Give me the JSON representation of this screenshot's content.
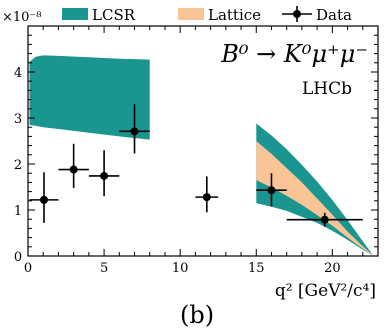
{
  "chart_data": {
    "type": "scatter",
    "decay_title": "B⁰ → K⁰μ⁺μ⁻",
    "experiment": "LHCb",
    "panel_label": "(b)",
    "xlabel": "q² [GeV²/c⁴]",
    "ylabel": "",
    "y_multiplier": "×10⁻⁸",
    "xlim": [
      0,
      23
    ],
    "ylim": [
      0,
      5
    ],
    "x_ticks": [
      0,
      5,
      10,
      15,
      20
    ],
    "y_ticks": [
      0,
      1,
      2,
      3,
      4
    ],
    "legend_position": "top",
    "legend": [
      {
        "label": "LCSR",
        "kind": "band",
        "color": "#1a9590"
      },
      {
        "label": "Lattice",
        "kind": "band",
        "color": "#f9c597"
      },
      {
        "label": "Data",
        "kind": "errorbar",
        "color": "#000000"
      }
    ],
    "series": [
      {
        "name": "Data",
        "points": [
          {
            "x": 1.05,
            "xlo": 0.1,
            "xhi": 2.0,
            "y": 1.22,
            "ylo": 0.72,
            "yhi": 1.82
          },
          {
            "x": 3.0,
            "xlo": 2.0,
            "xhi": 4.0,
            "y": 1.88,
            "ylo": 1.48,
            "yhi": 2.44
          },
          {
            "x": 5.0,
            "xlo": 4.0,
            "xhi": 6.0,
            "y": 1.74,
            "ylo": 1.3,
            "yhi": 2.3
          },
          {
            "x": 7.0,
            "xlo": 6.0,
            "xhi": 8.0,
            "y": 2.71,
            "ylo": 2.23,
            "yhi": 3.3
          },
          {
            "x": 11.75,
            "xlo": 11.0,
            "xhi": 12.5,
            "y": 1.28,
            "ylo": 0.95,
            "yhi": 1.73
          },
          {
            "x": 16.0,
            "xlo": 15.0,
            "xhi": 17.0,
            "y": 1.43,
            "ylo": 1.08,
            "yhi": 1.8
          },
          {
            "x": 19.5,
            "xlo": 17.0,
            "xhi": 22.0,
            "y": 0.79,
            "ylo": 0.64,
            "yhi": 0.94
          }
        ]
      },
      {
        "name": "LCSR",
        "band": [
          {
            "x": 0.1,
            "lo": 2.85,
            "hi": 4.22
          },
          {
            "x": 0.5,
            "lo": 2.83,
            "hi": 4.33
          },
          {
            "x": 1.0,
            "lo": 2.8,
            "hi": 4.36
          },
          {
            "x": 2.0,
            "lo": 2.76,
            "hi": 4.35
          },
          {
            "x": 4.0,
            "lo": 2.68,
            "hi": 4.32
          },
          {
            "x": 6.0,
            "lo": 2.6,
            "hi": 4.29
          },
          {
            "x": 8.0,
            "lo": 2.53,
            "hi": 4.27
          }
        ],
        "band_high_q2": [
          {
            "x": 15.0,
            "lo": 1.15,
            "hi": 2.88
          },
          {
            "x": 16.0,
            "lo": 1.07,
            "hi": 2.62
          },
          {
            "x": 17.0,
            "lo": 0.98,
            "hi": 2.32
          },
          {
            "x": 18.0,
            "lo": 0.85,
            "hi": 1.98
          },
          {
            "x": 19.0,
            "lo": 0.72,
            "hi": 1.62
          },
          {
            "x": 20.0,
            "lo": 0.55,
            "hi": 1.22
          },
          {
            "x": 21.0,
            "lo": 0.35,
            "hi": 0.78
          },
          {
            "x": 22.0,
            "lo": 0.14,
            "hi": 0.32
          },
          {
            "x": 22.6,
            "lo": 0.02,
            "hi": 0.05
          }
        ]
      },
      {
        "name": "Lattice",
        "band": [
          {
            "x": 15.0,
            "lo": 1.65,
            "hi": 2.5
          },
          {
            "x": 16.0,
            "lo": 1.49,
            "hi": 2.22
          },
          {
            "x": 17.0,
            "lo": 1.31,
            "hi": 1.91
          },
          {
            "x": 18.0,
            "lo": 1.11,
            "hi": 1.6
          },
          {
            "x": 19.0,
            "lo": 0.89,
            "hi": 1.25
          },
          {
            "x": 20.0,
            "lo": 0.66,
            "hi": 0.9
          },
          {
            "x": 21.0,
            "lo": 0.4,
            "hi": 0.53
          },
          {
            "x": 22.0,
            "lo": 0.16,
            "hi": 0.21
          },
          {
            "x": 22.6,
            "lo": 0.02,
            "hi": 0.04
          }
        ]
      }
    ]
  }
}
